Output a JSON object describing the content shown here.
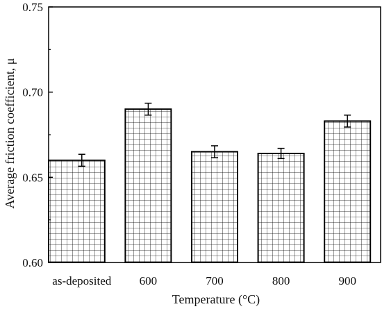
{
  "chart_data": {
    "type": "bar",
    "title": "",
    "xlabel": "Temperature (°C)",
    "ylabel": "Average friction coefficient, μ",
    "categories": [
      "as-deposited",
      "600",
      "700",
      "800",
      "900"
    ],
    "values": [
      0.66,
      0.69,
      0.665,
      0.664,
      0.683
    ],
    "errors": [
      0.0035,
      0.0035,
      0.0035,
      0.003,
      0.0035
    ],
    "ylim": [
      0.6,
      0.75
    ],
    "yticks": [
      "0.60",
      "0.65",
      "0.70",
      "0.75"
    ],
    "grid": false,
    "legend": "none",
    "bar_pattern": "cross-hatch grid",
    "colors": {
      "bar_fill": "#ffffff",
      "bar_hatch": "#000000",
      "axis": "#000000",
      "text": "#111111"
    }
  }
}
